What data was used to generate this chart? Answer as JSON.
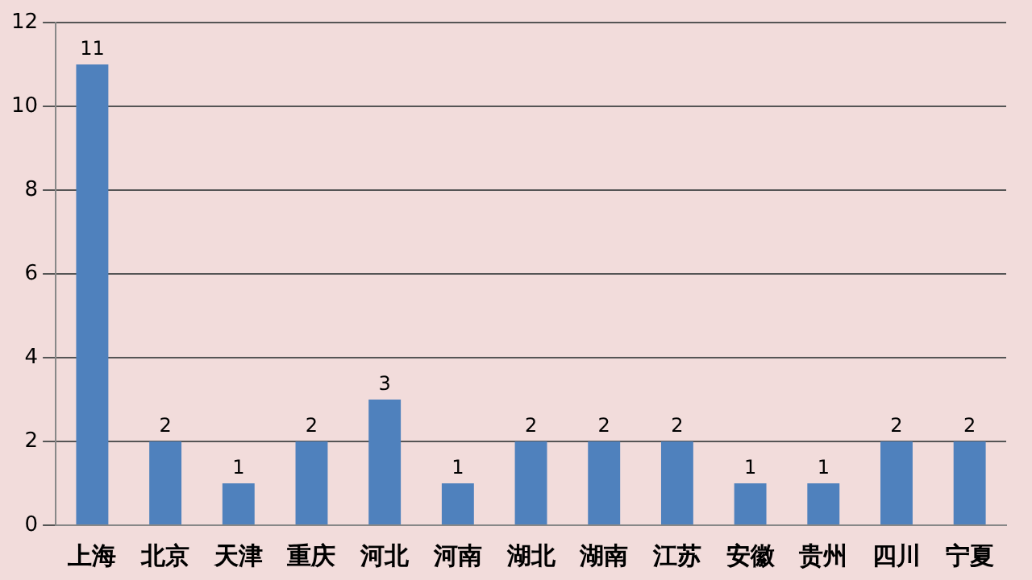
{
  "chart_data": {
    "type": "bar",
    "categories": [
      "上海",
      "北京",
      "天津",
      "重庆",
      "河北",
      "河南",
      "湖北",
      "湖南",
      "江苏",
      "安徽",
      "贵州",
      "四川",
      "宁夏"
    ],
    "values": [
      11,
      2,
      1,
      2,
      3,
      1,
      2,
      2,
      2,
      1,
      1,
      2,
      2
    ],
    "color": "#4f81bd",
    "ylim": [
      0,
      12
    ],
    "yticks": [
      0,
      2,
      4,
      6,
      8,
      10,
      12
    ],
    "grid": "y",
    "data_labels": true,
    "legend": false
  }
}
